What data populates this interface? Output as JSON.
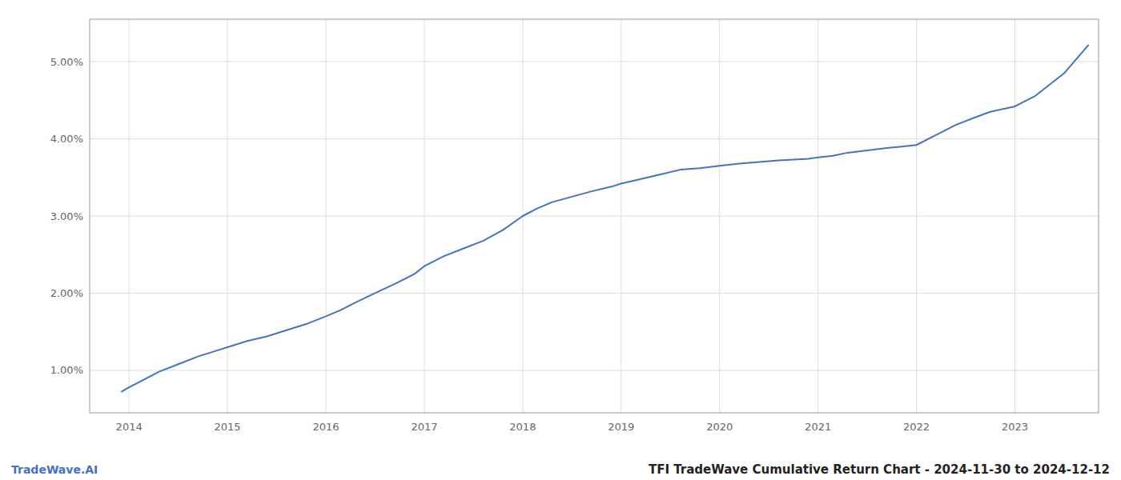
{
  "chart_data": {
    "type": "line",
    "title": "TFI TradeWave Cumulative Return Chart - 2024-11-30 to 2024-12-12",
    "annotations": [
      "TradeWave.AI"
    ],
    "color": "#4472c4",
    "grid": true,
    "x": [
      2013.92,
      2014.0,
      2014.15,
      2014.3,
      2014.5,
      2014.7,
      2014.9,
      2015.0,
      2015.2,
      2015.4,
      2015.6,
      2015.8,
      2016.0,
      2016.15,
      2016.3,
      2016.5,
      2016.7,
      2016.9,
      2017.0,
      2017.2,
      2017.4,
      2017.6,
      2017.8,
      2018.0,
      2018.15,
      2018.3,
      2018.5,
      2018.7,
      2018.9,
      2019.0,
      2019.2,
      2019.4,
      2019.6,
      2019.8,
      2020.0,
      2020.2,
      2020.4,
      2020.6,
      2020.75,
      2020.9,
      2021.0,
      2021.15,
      2021.3,
      2021.5,
      2021.7,
      2021.85,
      2022.0,
      2022.2,
      2022.4,
      2022.6,
      2022.75,
      2023.0,
      2023.2,
      2023.5,
      2023.75
    ],
    "values": [
      0.72,
      0.78,
      0.88,
      0.98,
      1.08,
      1.18,
      1.26,
      1.3,
      1.38,
      1.44,
      1.52,
      1.6,
      1.7,
      1.78,
      1.88,
      2.0,
      2.12,
      2.25,
      2.35,
      2.48,
      2.58,
      2.68,
      2.82,
      3.0,
      3.1,
      3.18,
      3.25,
      3.32,
      3.38,
      3.42,
      3.48,
      3.54,
      3.6,
      3.62,
      3.65,
      3.68,
      3.7,
      3.72,
      3.73,
      3.74,
      3.76,
      3.78,
      3.82,
      3.85,
      3.88,
      3.9,
      3.92,
      4.05,
      4.18,
      4.28,
      4.35,
      4.42,
      4.55,
      4.85,
      5.22
    ],
    "xlim": [
      2013.6,
      2023.85
    ],
    "xticks": [
      2014,
      2015,
      2016,
      2017,
      2018,
      2019,
      2020,
      2021,
      2022,
      2023
    ],
    "ylim": [
      0.45,
      5.55
    ],
    "yticks": [
      {
        "value": 1.0,
        "label": "1.00%"
      },
      {
        "value": 2.0,
        "label": "2.00%"
      },
      {
        "value": 3.0,
        "label": "3.00%"
      },
      {
        "value": 4.0,
        "label": "4.00%"
      },
      {
        "value": 5.0,
        "label": "5.00%"
      }
    ]
  }
}
